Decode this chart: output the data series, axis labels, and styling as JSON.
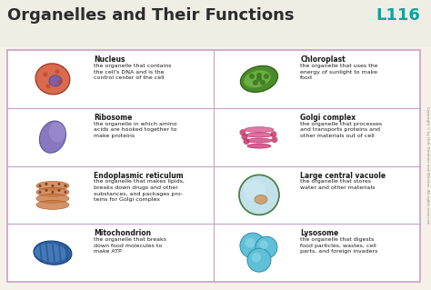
{
  "title": "Organelles and Their Functions",
  "page_ref": "L116",
  "bg_color": "#f5f0e8",
  "title_color": "#2c2c2c",
  "page_ref_color": "#00a9a0",
  "grid_border_color": "#c8a0c8",
  "organelles": [
    {
      "name": "Nucleus",
      "description": "the organelle that contains\nthe cell's DNA and is the\ncontrol center of the cell",
      "color": "#d45a3a",
      "shape": "nucleus",
      "row": 0,
      "col": 0
    },
    {
      "name": "Chloroplast",
      "description": "the organelle that uses the\nenergy of sunlight to make\nfood",
      "color": "#5a9a3a",
      "shape": "chloroplast",
      "row": 0,
      "col": 1
    },
    {
      "name": "Ribosome",
      "description": "the organelle in which amino\nacids are hooked together to\nmake proteins",
      "color": "#7a6aaa",
      "shape": "ribosome",
      "row": 1,
      "col": 0
    },
    {
      "name": "Golgi complex",
      "description": "the organelle that processes\nand transports proteins and\nother materials out of cell",
      "color": "#c8306a",
      "shape": "golgi",
      "row": 1,
      "col": 1
    },
    {
      "name": "Endoplasmic reticulum",
      "description": "the organelle that makes lipids,\nbreaks down drugs and other\nsubstances, and packages pro-\nteins for Golgi complex",
      "color": "#c8783a",
      "shape": "er",
      "row": 2,
      "col": 0
    },
    {
      "name": "Large central vacuole",
      "description": "the organelle that stores\nwater and other materials",
      "color": "#6ab0c8",
      "shape": "vacuole",
      "row": 2,
      "col": 1
    },
    {
      "name": "Mitochondrion",
      "description": "the organelle that breaks\ndown food molecules to\nmake ATP",
      "color": "#3a6ab0",
      "shape": "mitochondria",
      "row": 3,
      "col": 0
    },
    {
      "name": "Lysosome",
      "description": "the organelle that digests\nfood particles, wastes, cell\nparts, and foreign invaders",
      "color": "#5ab0c8",
      "shape": "lysosome",
      "row": 3,
      "col": 1
    }
  ]
}
